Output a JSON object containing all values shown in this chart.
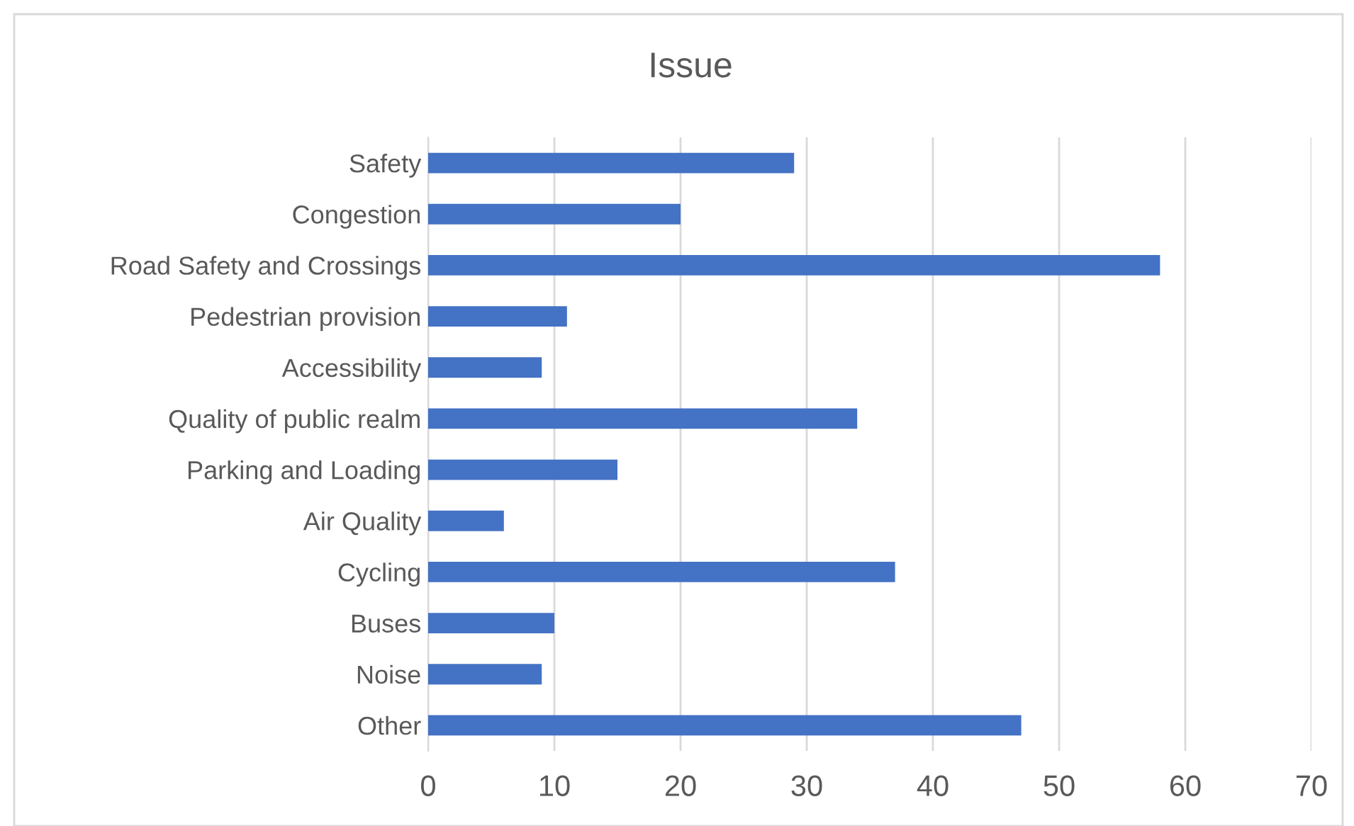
{
  "chart_data": {
    "type": "bar",
    "orientation": "horizontal",
    "title": "Issue",
    "categories": [
      "Safety",
      "Congestion",
      "Road Safety and Crossings",
      "Pedestrian provision",
      "Accessibility",
      "Quality of public realm",
      "Parking and Loading",
      "Air Quality",
      "Cycling",
      "Buses",
      "Noise",
      "Other"
    ],
    "values": [
      29,
      20,
      58,
      11,
      9,
      34,
      15,
      6,
      37,
      10,
      9,
      47
    ],
    "color": "#4472c4",
    "xlim": [
      0,
      70
    ],
    "xticks": [
      0,
      10,
      20,
      30,
      40,
      50,
      60,
      70
    ],
    "grid": "x",
    "legend": false
  }
}
